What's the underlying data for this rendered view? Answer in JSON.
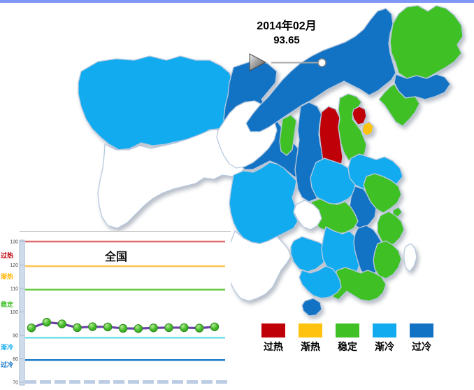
{
  "window": {
    "top_bar_color": "#7E97F7"
  },
  "time_control": {
    "date": "2014年02月",
    "value": "93.65"
  },
  "status_colors": {
    "overheat": "#C00008",
    "warming": "#FFC20E",
    "stable": "#3FC125",
    "cooling": "#12ABF0",
    "cold": "#1272C3",
    "none": "#FFFFFF"
  },
  "legend": {
    "items": [
      {
        "label": "过热",
        "status": "overheat",
        "color": "#C00008"
      },
      {
        "label": "渐热",
        "status": "warming",
        "color": "#FFC20E"
      },
      {
        "label": "稳定",
        "status": "stable",
        "color": "#3FC125"
      },
      {
        "label": "渐冷",
        "status": "cooling",
        "color": "#12ABF0"
      },
      {
        "label": "过冷",
        "status": "cold",
        "color": "#1272C3"
      }
    ]
  },
  "map": {
    "border_color": "#B7C9DE",
    "provinces": [
      {
        "id": "xinjiang",
        "name": "新疆",
        "status": "cooling"
      },
      {
        "id": "xizang",
        "name": "西藏",
        "status": "none"
      },
      {
        "id": "gansu",
        "name": "甘肃",
        "status": "cold"
      },
      {
        "id": "qinghai",
        "name": "青海",
        "status": "none"
      },
      {
        "id": "neimenggu",
        "name": "内蒙古",
        "status": "cold"
      },
      {
        "id": "heilongjiang",
        "name": "黑龙江",
        "status": "stable"
      },
      {
        "id": "jilin",
        "name": "吉林",
        "status": "cold"
      },
      {
        "id": "liaoning",
        "name": "辽宁",
        "status": "stable"
      },
      {
        "id": "ningxia",
        "name": "宁夏",
        "status": "stable"
      },
      {
        "id": "shaanxi",
        "name": "陕西",
        "status": "cold"
      },
      {
        "id": "shanxi",
        "name": "山西",
        "status": "overheat"
      },
      {
        "id": "hebei",
        "name": "河北",
        "status": "stable"
      },
      {
        "id": "beijing",
        "name": "北京",
        "status": "overheat"
      },
      {
        "id": "tianjin",
        "name": "天津",
        "status": "warming"
      },
      {
        "id": "shandong",
        "name": "山东",
        "status": "cooling"
      },
      {
        "id": "henan",
        "name": "河南",
        "status": "cooling"
      },
      {
        "id": "jiangsu",
        "name": "江苏",
        "status": "stable"
      },
      {
        "id": "anhui",
        "name": "安徽",
        "status": "cold"
      },
      {
        "id": "shanghai",
        "name": "上海",
        "status": "stable"
      },
      {
        "id": "hubei",
        "name": "湖北",
        "status": "stable"
      },
      {
        "id": "sichuan",
        "name": "四川",
        "status": "cooling"
      },
      {
        "id": "chongqing",
        "name": "重庆",
        "status": "none"
      },
      {
        "id": "guizhou",
        "name": "贵州",
        "status": "cooling"
      },
      {
        "id": "yunnan",
        "name": "云南",
        "status": "none"
      },
      {
        "id": "hunan",
        "name": "湖南",
        "status": "cooling"
      },
      {
        "id": "jiangxi",
        "name": "江西",
        "status": "cold"
      },
      {
        "id": "zhejiang",
        "name": "浙江",
        "status": "stable"
      },
      {
        "id": "fujian",
        "name": "福建",
        "status": "stable"
      },
      {
        "id": "guangdong",
        "name": "广东",
        "status": "stable"
      },
      {
        "id": "guangxi",
        "name": "广西",
        "status": "cooling"
      },
      {
        "id": "hainan",
        "name": "海南",
        "status": "cold"
      },
      {
        "id": "taiwan",
        "name": "台湾",
        "status": "none"
      }
    ]
  },
  "chart_data": {
    "type": "line",
    "title": "全国",
    "current_label": "2014年02月",
    "current_value": 93.65,
    "values": [
      93.2,
      95.6,
      94.9,
      93.3,
      93.7,
      93.6,
      93.0,
      92.9,
      93.2,
      93.3,
      93.3,
      93.1,
      93.65
    ],
    "ylim": [
      70,
      130
    ],
    "yticks": [
      130,
      120,
      110,
      100,
      90,
      80,
      70
    ],
    "grid": false,
    "series_color": "#6A43A8",
    "marker_color": "#46BE2E",
    "threshold_lines": [
      {
        "label": "过热",
        "value": 130.0,
        "color": "#E06A6A",
        "label_color": "#C00008"
      },
      {
        "label": "渐热",
        "value": 119.5,
        "color": "#FFC34F",
        "label_color": "#FFB400"
      },
      {
        "label": "稳定",
        "value": 109.5,
        "color": "#67CB3F",
        "label_color": "#3FBF26"
      },
      {
        "label": "渐冷",
        "value": 89.0,
        "color": "#66DEE6",
        "label_color": "#12ABF0"
      },
      {
        "label": "过冷",
        "value": 79.5,
        "color": "#1778C8",
        "label_color": "#1272C3"
      }
    ]
  }
}
